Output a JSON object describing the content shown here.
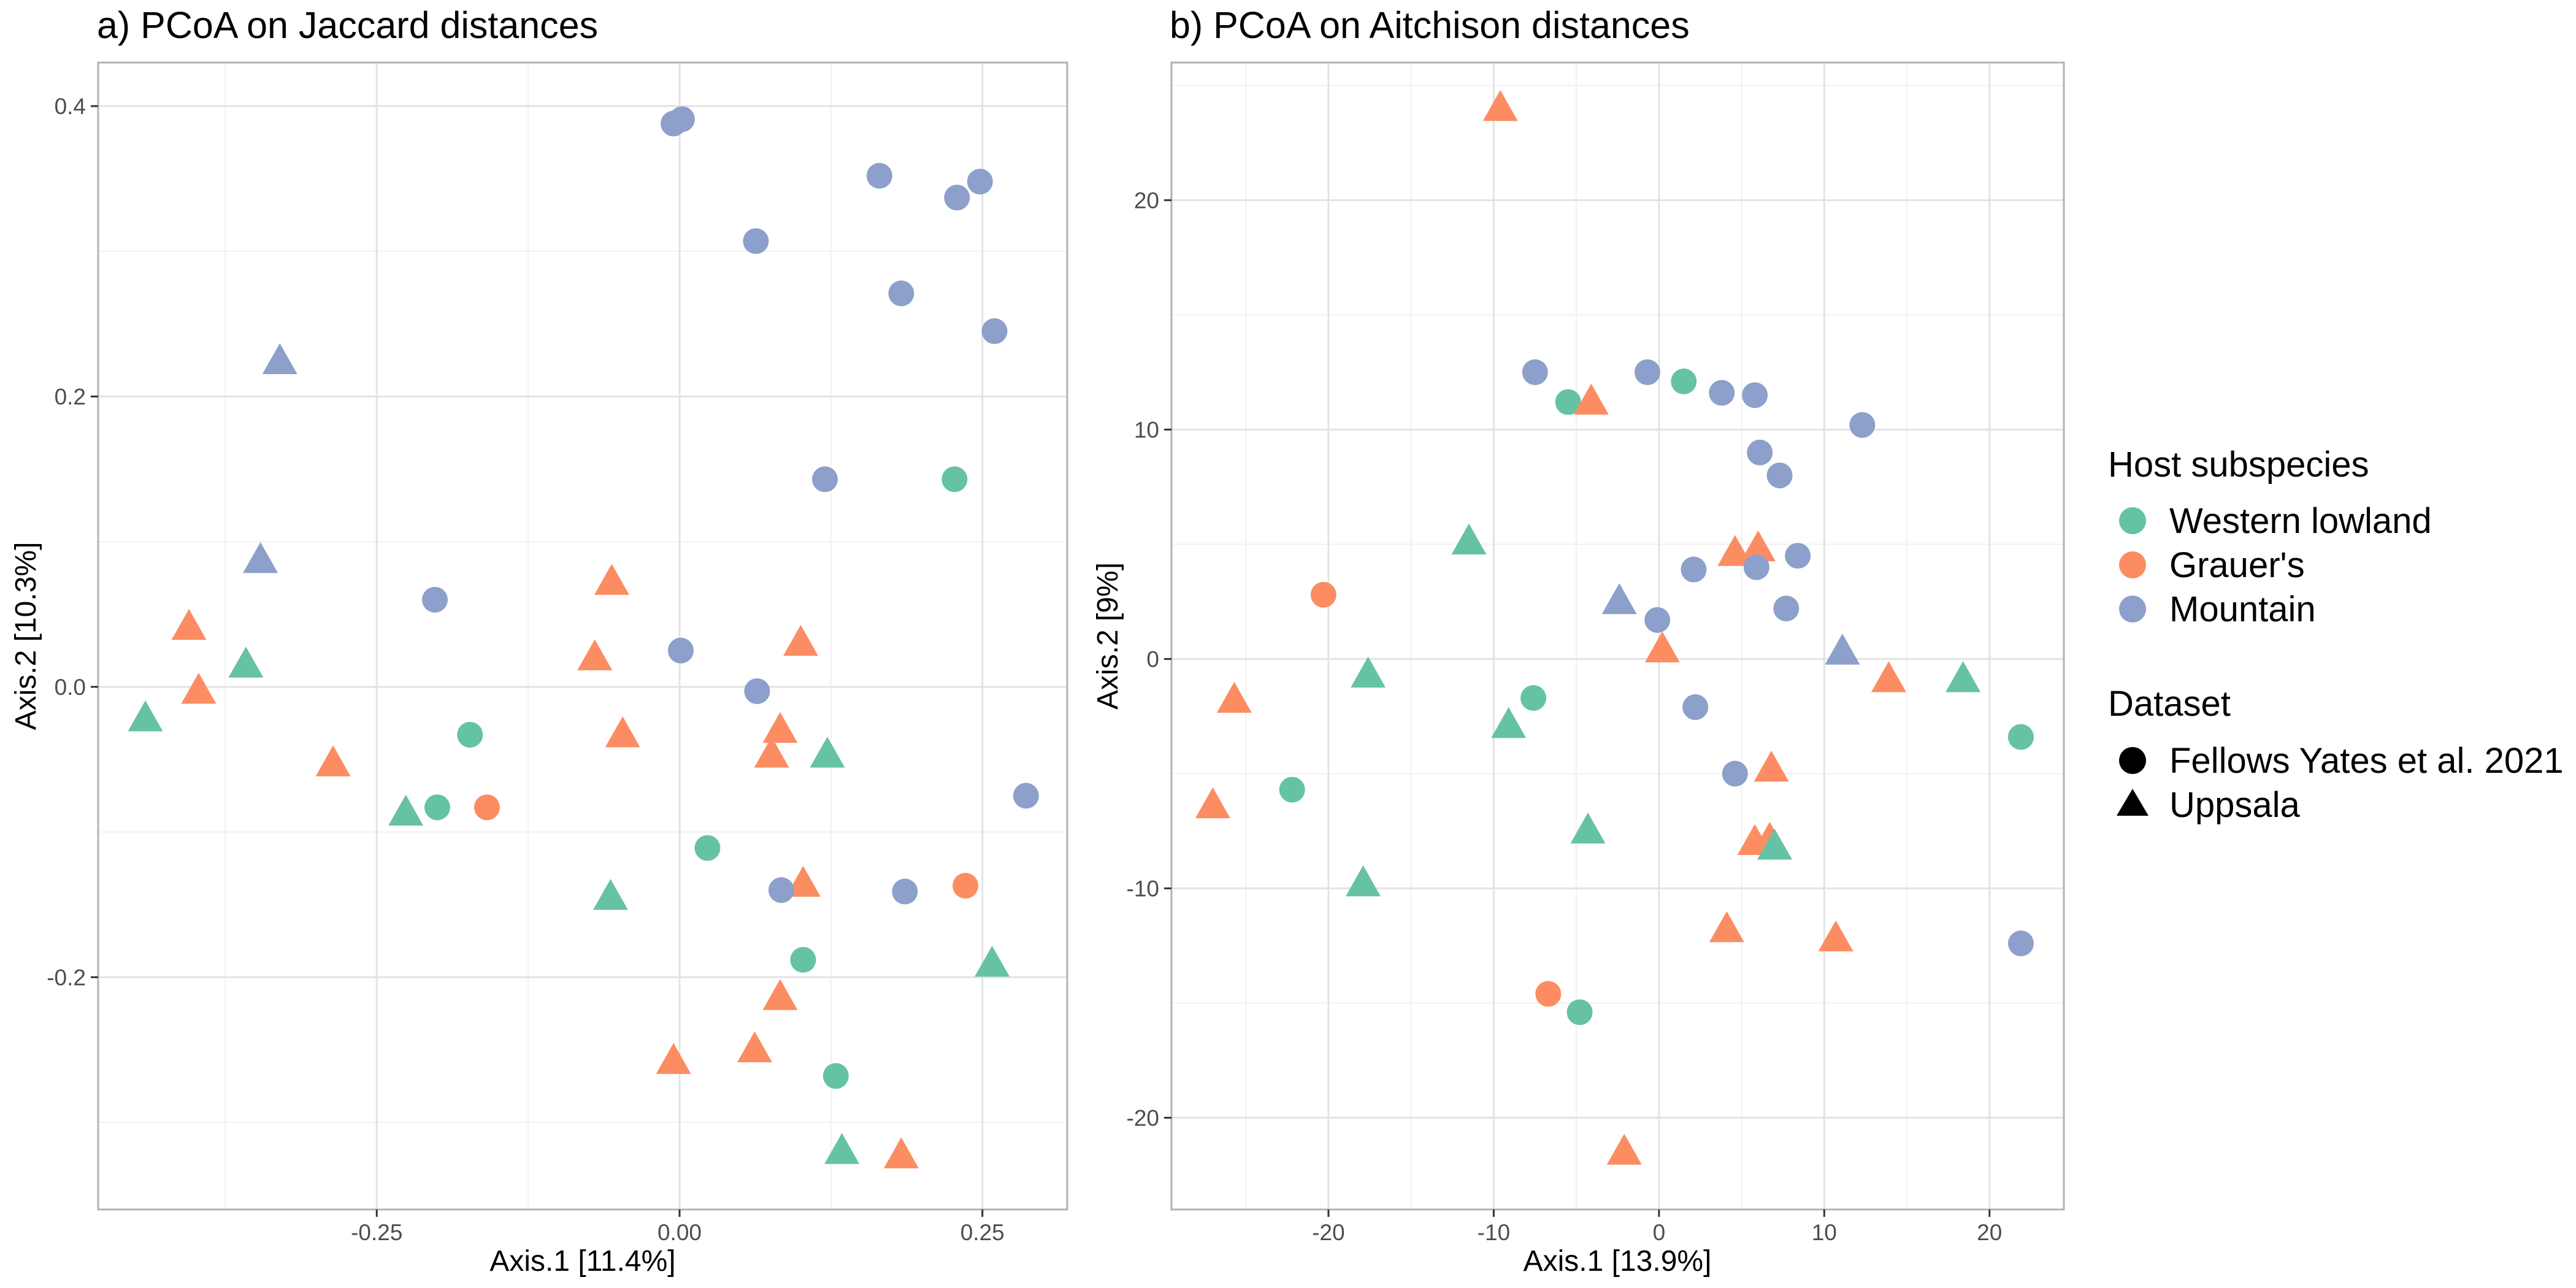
{
  "chart_data": [
    {
      "type": "scatter",
      "title": "a) PCoA on Jaccard distances",
      "xlabel": "Axis.1   [11.4%]",
      "ylabel": "Axis.2   [10.3%]",
      "xlim": [
        -0.48,
        0.32
      ],
      "ylim": [
        -0.36,
        0.43
      ],
      "x_ticks": [
        -0.25,
        0.0,
        0.25
      ],
      "x_tick_labels": [
        "-0.25",
        "0.00",
        "0.25"
      ],
      "y_ticks": [
        -0.2,
        0.0,
        0.2,
        0.4
      ],
      "y_tick_labels": [
        "-0.2",
        "0.0",
        "0.2",
        "0.4"
      ],
      "grid": true,
      "points": [
        {
          "x": -0.005,
          "y": 0.388,
          "group": "Mountain",
          "dataset": "Fellows Yates et al. 2021"
        },
        {
          "x": 0.002,
          "y": 0.391,
          "group": "Mountain",
          "dataset": "Fellows Yates et al. 2021"
        },
        {
          "x": 0.165,
          "y": 0.352,
          "group": "Mountain",
          "dataset": "Fellows Yates et al. 2021"
        },
        {
          "x": 0.248,
          "y": 0.348,
          "group": "Mountain",
          "dataset": "Fellows Yates et al. 2021"
        },
        {
          "x": 0.229,
          "y": 0.337,
          "group": "Mountain",
          "dataset": "Fellows Yates et al. 2021"
        },
        {
          "x": 0.063,
          "y": 0.307,
          "group": "Mountain",
          "dataset": "Fellows Yates et al. 2021"
        },
        {
          "x": 0.183,
          "y": 0.271,
          "group": "Mountain",
          "dataset": "Fellows Yates et al. 2021"
        },
        {
          "x": 0.26,
          "y": 0.245,
          "group": "Mountain",
          "dataset": "Fellows Yates et al. 2021"
        },
        {
          "x": -0.33,
          "y": 0.224,
          "group": "Mountain",
          "dataset": "Uppsala"
        },
        {
          "x": 0.12,
          "y": 0.143,
          "group": "Mountain",
          "dataset": "Fellows Yates et al. 2021"
        },
        {
          "x": 0.227,
          "y": 0.143,
          "group": "Western lowland",
          "dataset": "Fellows Yates et al. 2021"
        },
        {
          "x": -0.346,
          "y": 0.087,
          "group": "Mountain",
          "dataset": "Uppsala"
        },
        {
          "x": -0.056,
          "y": 0.072,
          "group": "Grauer's",
          "dataset": "Uppsala"
        },
        {
          "x": -0.202,
          "y": 0.06,
          "group": "Mountain",
          "dataset": "Fellows Yates et al. 2021"
        },
        {
          "x": -0.405,
          "y": 0.041,
          "group": "Grauer's",
          "dataset": "Uppsala"
        },
        {
          "x": 0.1,
          "y": 0.03,
          "group": "Grauer's",
          "dataset": "Uppsala"
        },
        {
          "x": 0.001,
          "y": 0.025,
          "group": "Mountain",
          "dataset": "Fellows Yates et al. 2021"
        },
        {
          "x": -0.07,
          "y": 0.02,
          "group": "Grauer's",
          "dataset": "Uppsala"
        },
        {
          "x": -0.358,
          "y": 0.015,
          "group": "Western lowland",
          "dataset": "Uppsala"
        },
        {
          "x": 0.064,
          "y": -0.003,
          "group": "Mountain",
          "dataset": "Fellows Yates et al. 2021"
        },
        {
          "x": -0.397,
          "y": -0.003,
          "group": "Grauer's",
          "dataset": "Uppsala"
        },
        {
          "x": -0.441,
          "y": -0.022,
          "group": "Western lowland",
          "dataset": "Uppsala"
        },
        {
          "x": 0.083,
          "y": -0.03,
          "group": "Grauer's",
          "dataset": "Uppsala"
        },
        {
          "x": -0.173,
          "y": -0.033,
          "group": "Western lowland",
          "dataset": "Fellows Yates et al. 2021"
        },
        {
          "x": -0.047,
          "y": -0.033,
          "group": "Grauer's",
          "dataset": "Uppsala"
        },
        {
          "x": 0.076,
          "y": -0.047,
          "group": "Grauer's",
          "dataset": "Uppsala"
        },
        {
          "x": 0.122,
          "y": -0.047,
          "group": "Western lowland",
          "dataset": "Uppsala"
        },
        {
          "x": -0.286,
          "y": -0.053,
          "group": "Grauer's",
          "dataset": "Uppsala"
        },
        {
          "x": 0.286,
          "y": -0.075,
          "group": "Mountain",
          "dataset": "Fellows Yates et al. 2021"
        },
        {
          "x": -0.2,
          "y": -0.083,
          "group": "Western lowland",
          "dataset": "Fellows Yates et al. 2021"
        },
        {
          "x": -0.159,
          "y": -0.083,
          "group": "Grauer's",
          "dataset": "Fellows Yates et al. 2021"
        },
        {
          "x": -0.226,
          "y": -0.087,
          "group": "Western lowland",
          "dataset": "Uppsala"
        },
        {
          "x": 0.023,
          "y": -0.111,
          "group": "Western lowland",
          "dataset": "Fellows Yates et al. 2021"
        },
        {
          "x": 0.236,
          "y": -0.137,
          "group": "Grauer's",
          "dataset": "Fellows Yates et al. 2021"
        },
        {
          "x": 0.102,
          "y": -0.136,
          "group": "Grauer's",
          "dataset": "Uppsala"
        },
        {
          "x": 0.084,
          "y": -0.14,
          "group": "Mountain",
          "dataset": "Fellows Yates et al. 2021"
        },
        {
          "x": 0.186,
          "y": -0.141,
          "group": "Mountain",
          "dataset": "Fellows Yates et al. 2021"
        },
        {
          "x": -0.057,
          "y": -0.145,
          "group": "Western lowland",
          "dataset": "Uppsala"
        },
        {
          "x": 0.102,
          "y": -0.188,
          "group": "Western lowland",
          "dataset": "Fellows Yates et al. 2021"
        },
        {
          "x": 0.258,
          "y": -0.191,
          "group": "Western lowland",
          "dataset": "Uppsala"
        },
        {
          "x": 0.083,
          "y": -0.214,
          "group": "Grauer's",
          "dataset": "Uppsala"
        },
        {
          "x": 0.062,
          "y": -0.25,
          "group": "Grauer's",
          "dataset": "Uppsala"
        },
        {
          "x": -0.005,
          "y": -0.258,
          "group": "Grauer's",
          "dataset": "Uppsala"
        },
        {
          "x": 0.129,
          "y": -0.268,
          "group": "Western lowland",
          "dataset": "Fellows Yates et al. 2021"
        },
        {
          "x": 0.134,
          "y": -0.32,
          "group": "Western lowland",
          "dataset": "Uppsala"
        },
        {
          "x": 0.183,
          "y": -0.323,
          "group": "Grauer's",
          "dataset": "Uppsala"
        }
      ]
    },
    {
      "type": "scatter",
      "title": "b) PCoA on Aitchison distances",
      "xlabel": "Axis.1   [13.9%]",
      "ylabel": "Axis.2   [9%]",
      "xlim": [
        -29.5,
        24.5
      ],
      "ylim": [
        -24,
        26
      ],
      "x_ticks": [
        -20,
        -10,
        0,
        10,
        20
      ],
      "x_tick_labels": [
        "-20",
        "-10",
        "0",
        "10",
        "20"
      ],
      "y_ticks": [
        -20,
        -10,
        0,
        10,
        20
      ],
      "y_tick_labels": [
        "-20",
        "-10",
        "0",
        "10",
        "20"
      ],
      "grid": true,
      "points": [
        {
          "x": -9.6,
          "y": 24.0,
          "group": "Grauer's",
          "dataset": "Uppsala"
        },
        {
          "x": -7.5,
          "y": 12.5,
          "group": "Mountain",
          "dataset": "Fellows Yates et al. 2021"
        },
        {
          "x": -0.7,
          "y": 12.5,
          "group": "Mountain",
          "dataset": "Fellows Yates et al. 2021"
        },
        {
          "x": 1.5,
          "y": 12.1,
          "group": "Western lowland",
          "dataset": "Fellows Yates et al. 2021"
        },
        {
          "x": 3.8,
          "y": 11.6,
          "group": "Mountain",
          "dataset": "Fellows Yates et al. 2021"
        },
        {
          "x": 5.8,
          "y": 11.5,
          "group": "Mountain",
          "dataset": "Fellows Yates et al. 2021"
        },
        {
          "x": -5.5,
          "y": 11.2,
          "group": "Western lowland",
          "dataset": "Fellows Yates et al. 2021"
        },
        {
          "x": -4.1,
          "y": 11.2,
          "group": "Grauer's",
          "dataset": "Uppsala"
        },
        {
          "x": 12.3,
          "y": 10.2,
          "group": "Mountain",
          "dataset": "Fellows Yates et al. 2021"
        },
        {
          "x": 6.1,
          "y": 9.0,
          "group": "Mountain",
          "dataset": "Fellows Yates et al. 2021"
        },
        {
          "x": 7.3,
          "y": 8.0,
          "group": "Mountain",
          "dataset": "Fellows Yates et al. 2021"
        },
        {
          "x": -11.5,
          "y": 5.1,
          "group": "Western lowland",
          "dataset": "Uppsala"
        },
        {
          "x": 6.0,
          "y": 4.8,
          "group": "Grauer's",
          "dataset": "Uppsala"
        },
        {
          "x": 4.6,
          "y": 4.6,
          "group": "Grauer's",
          "dataset": "Uppsala"
        },
        {
          "x": 8.4,
          "y": 4.5,
          "group": "Mountain",
          "dataset": "Fellows Yates et al. 2021"
        },
        {
          "x": 5.9,
          "y": 4.0,
          "group": "Mountain",
          "dataset": "Fellows Yates et al. 2021"
        },
        {
          "x": 2.1,
          "y": 3.9,
          "group": "Mountain",
          "dataset": "Fellows Yates et al. 2021"
        },
        {
          "x": -20.3,
          "y": 2.8,
          "group": "Grauer's",
          "dataset": "Fellows Yates et al. 2021"
        },
        {
          "x": -2.4,
          "y": 2.5,
          "group": "Mountain",
          "dataset": "Uppsala"
        },
        {
          "x": 7.7,
          "y": 2.2,
          "group": "Mountain",
          "dataset": "Fellows Yates et al. 2021"
        },
        {
          "x": -0.1,
          "y": 1.7,
          "group": "Mountain",
          "dataset": "Fellows Yates et al. 2021"
        },
        {
          "x": 0.2,
          "y": 0.4,
          "group": "Grauer's",
          "dataset": "Uppsala"
        },
        {
          "x": 11.1,
          "y": 0.3,
          "group": "Mountain",
          "dataset": "Uppsala"
        },
        {
          "x": -17.6,
          "y": -0.7,
          "group": "Western lowland",
          "dataset": "Uppsala"
        },
        {
          "x": 13.9,
          "y": -0.9,
          "group": "Grauer's",
          "dataset": "Uppsala"
        },
        {
          "x": 18.4,
          "y": -0.9,
          "group": "Western lowland",
          "dataset": "Uppsala"
        },
        {
          "x": -7.6,
          "y": -1.7,
          "group": "Western lowland",
          "dataset": "Fellows Yates et al. 2021"
        },
        {
          "x": -25.7,
          "y": -1.8,
          "group": "Grauer's",
          "dataset": "Uppsala"
        },
        {
          "x": 2.2,
          "y": -2.1,
          "group": "Mountain",
          "dataset": "Fellows Yates et al. 2021"
        },
        {
          "x": -9.1,
          "y": -2.9,
          "group": "Western lowland",
          "dataset": "Uppsala"
        },
        {
          "x": 21.9,
          "y": -3.4,
          "group": "Western lowland",
          "dataset": "Fellows Yates et al. 2021"
        },
        {
          "x": 4.6,
          "y": -5.0,
          "group": "Mountain",
          "dataset": "Fellows Yates et al. 2021"
        },
        {
          "x": 6.8,
          "y": -4.8,
          "group": "Grauer's",
          "dataset": "Uppsala"
        },
        {
          "x": -22.2,
          "y": -5.7,
          "group": "Western lowland",
          "dataset": "Fellows Yates et al. 2021"
        },
        {
          "x": -27.0,
          "y": -6.4,
          "group": "Grauer's",
          "dataset": "Uppsala"
        },
        {
          "x": -4.3,
          "y": -7.5,
          "group": "Western lowland",
          "dataset": "Uppsala"
        },
        {
          "x": 5.8,
          "y": -8.0,
          "group": "Grauer's",
          "dataset": "Uppsala"
        },
        {
          "x": 6.7,
          "y": -7.9,
          "group": "Grauer's",
          "dataset": "Uppsala"
        },
        {
          "x": 7.0,
          "y": -8.2,
          "group": "Western lowland",
          "dataset": "Uppsala"
        },
        {
          "x": -17.9,
          "y": -9.8,
          "group": "Western lowland",
          "dataset": "Uppsala"
        },
        {
          "x": 4.1,
          "y": -11.8,
          "group": "Grauer's",
          "dataset": "Uppsala"
        },
        {
          "x": 10.7,
          "y": -12.2,
          "group": "Grauer's",
          "dataset": "Uppsala"
        },
        {
          "x": 21.9,
          "y": -12.4,
          "group": "Mountain",
          "dataset": "Fellows Yates et al. 2021"
        },
        {
          "x": -6.7,
          "y": -14.6,
          "group": "Grauer's",
          "dataset": "Fellows Yates et al. 2021"
        },
        {
          "x": -4.8,
          "y": -15.4,
          "group": "Western lowland",
          "dataset": "Fellows Yates et al. 2021"
        },
        {
          "x": -2.1,
          "y": -21.5,
          "group": "Grauer's",
          "dataset": "Uppsala"
        }
      ]
    }
  ],
  "legend": {
    "placement": "right",
    "color_title": "Host subspecies",
    "colors": [
      {
        "label": "Western lowland",
        "color": "#66c2a5"
      },
      {
        "label": "Grauer's",
        "color": "#fc8d62"
      },
      {
        "label": "Mountain",
        "color": "#8da0cb"
      }
    ],
    "shape_title": "Dataset",
    "shapes": [
      {
        "label": "Fellows Yates et al. 2021",
        "shape": "circle"
      },
      {
        "label": "Uppsala",
        "shape": "triangle"
      }
    ]
  }
}
